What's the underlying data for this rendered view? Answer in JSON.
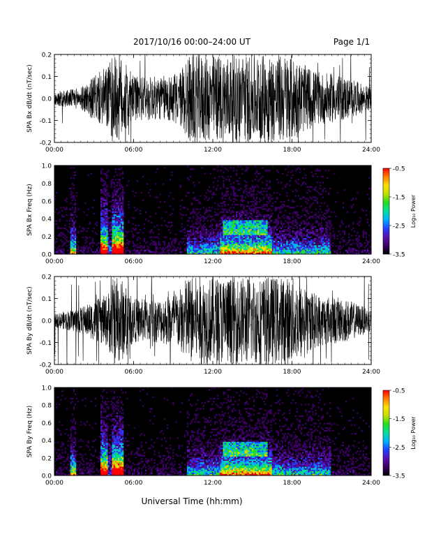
{
  "header": {
    "title": "2017/10/16  00:00–24:00 UT",
    "page": "Page 1/1"
  },
  "footer": {
    "xlabel": "Universal Time (hh:mm)"
  },
  "colors": {
    "trace": "#000000",
    "colorbar": [
      "#000000",
      "#3a0060",
      "#5a10b0",
      "#2040ff",
      "#00b0ff",
      "#00e0a0",
      "#20e020",
      "#c0e000",
      "#ffe000",
      "#ff8000",
      "#ff0000"
    ]
  },
  "chart_data": [
    {
      "type": "line",
      "ylabel": "SPA Bx dB/dt (nT/sec)",
      "xlim": [
        "00:00",
        "24:00"
      ],
      "ylim": [
        -0.2,
        0.2
      ],
      "x_ticks": [
        "00:00",
        "06:00",
        "12:00",
        "18:00",
        "24:00"
      ],
      "y_ticks": [
        "0.2",
        "0.1",
        "0.0",
        "-0.1",
        "-0.2"
      ],
      "series": [
        {
          "x_hours": [
            0,
            2,
            4,
            4.5,
            5,
            6,
            8,
            9.5,
            10,
            12,
            14,
            16,
            18,
            19,
            20,
            22,
            24
          ],
          "envelope": [
            0.03,
            0.05,
            0.15,
            0.2,
            0.2,
            0.1,
            0.1,
            0.12,
            0.2,
            0.2,
            0.2,
            0.2,
            0.2,
            0.15,
            0.12,
            0.1,
            0.05
          ]
        }
      ]
    },
    {
      "type": "heatmap",
      "ylabel": "SPA Bx Freq (Hz)",
      "xlim": [
        "00:00",
        "24:00"
      ],
      "ylim": [
        0,
        1.0
      ],
      "x_ticks": [
        "00:00",
        "06:00",
        "12:00",
        "18:00",
        "24:00"
      ],
      "y_ticks": [
        "1.0",
        "0.8",
        "0.6",
        "0.4",
        "0.2",
        "0.0"
      ],
      "colorbar": {
        "label": "Log₁₀ Power",
        "range": [
          -3.5,
          -0.5
        ],
        "ticks": [
          "-0.5",
          "-1.5",
          "-2.5",
          "-3.5"
        ]
      }
    },
    {
      "type": "line",
      "ylabel": "SPA By dB/dt (nT/sec)",
      "xlim": [
        "00:00",
        "24:00"
      ],
      "ylim": [
        -0.2,
        0.2
      ],
      "x_ticks": [
        "00:00",
        "06:00",
        "12:00",
        "18:00",
        "24:00"
      ],
      "y_ticks": [
        "0.2",
        "0.1",
        "0.0",
        "-0.1",
        "-0.2"
      ],
      "series": [
        {
          "x_hours": [
            0,
            2,
            4,
            4.5,
            5,
            6,
            8,
            9.5,
            10,
            12,
            14,
            16,
            18,
            19,
            20,
            22,
            24
          ],
          "envelope": [
            0.03,
            0.06,
            0.12,
            0.2,
            0.2,
            0.1,
            0.1,
            0.14,
            0.2,
            0.2,
            0.2,
            0.2,
            0.2,
            0.15,
            0.12,
            0.1,
            0.05
          ]
        }
      ]
    },
    {
      "type": "heatmap",
      "ylabel": "SPA By Freq (Hz)",
      "xlim": [
        "00:00",
        "24:00"
      ],
      "ylim": [
        0,
        1.0
      ],
      "x_ticks": [
        "00:00",
        "06:00",
        "12:00",
        "18:00",
        "24:00"
      ],
      "y_ticks": [
        "1.0",
        "0.8",
        "0.6",
        "0.4",
        "0.2",
        "0.0"
      ],
      "colorbar": {
        "label": "Log₁₀ Power",
        "range": [
          -3.5,
          -0.5
        ],
        "ticks": [
          "-0.5",
          "-1.5",
          "-2.5",
          "-3.5"
        ]
      }
    }
  ]
}
